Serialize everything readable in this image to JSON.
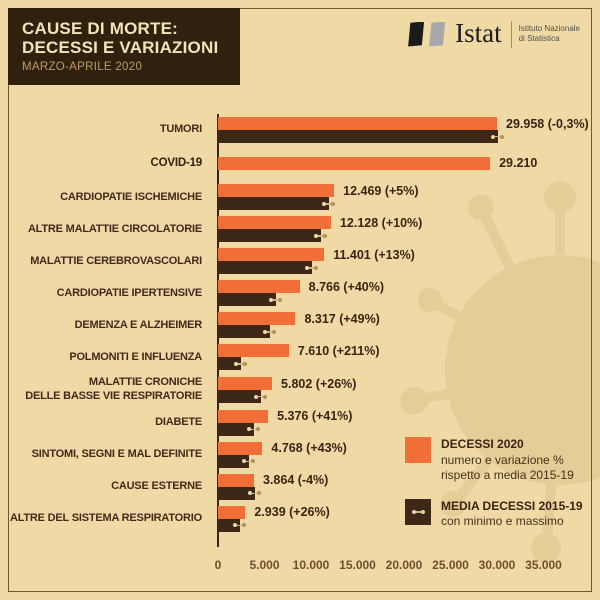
{
  "header": {
    "title_line1": "CAUSE DI MORTE:",
    "title_line2": "DECESSI E VARIAZIONI",
    "subtitle": "MARZO-APRILE 2020"
  },
  "logo": {
    "name": "Istat",
    "tagline_line1": "Istituto Nazionale",
    "tagline_line2": "di Statistica"
  },
  "legend": {
    "item1_title": "DECESSI 2020",
    "item1_line1": "numero e variazione %",
    "item1_line2": "rispetto a media 2015-19",
    "item2_title": "MEDIA DECESSI 2015-19",
    "item2_line1": "con minimo e massimo"
  },
  "colors": {
    "background": "#efdaa6",
    "bar_2020": "#f26e37",
    "bar_media": "#3d2817",
    "header_bg": "#31200e",
    "header_text": "#f3e4b8",
    "text_dark": "#3a2312",
    "tick_text": "#6f4e2c",
    "watermark": "#e4cd97"
  },
  "chart_data": {
    "type": "bar",
    "orientation": "horizontal",
    "title": "CAUSE DI MORTE: DECESSI E VARIAZIONI",
    "subtitle": "MARZO-APRILE 2020",
    "xlim": [
      0,
      35000
    ],
    "grid": false,
    "legend_position": "bottom-right",
    "x_ticks": [
      {
        "value": 0,
        "label": "0"
      },
      {
        "value": 5000,
        "label": "5.000"
      },
      {
        "value": 10000,
        "label": "10.000"
      },
      {
        "value": 15000,
        "label": "15.000"
      },
      {
        "value": 20000,
        "label": "20.000"
      },
      {
        "value": 25000,
        "label": "25.000"
      },
      {
        "value": 30000,
        "label": "30.000"
      },
      {
        "value": 35000,
        "label": "35.000"
      }
    ],
    "series_names": [
      "DECESSI 2020",
      "MEDIA DECESSI 2015-19"
    ],
    "rows": [
      {
        "label": "TUMORI",
        "deaths_2020": 29958,
        "value_label": "29.958 (-0,3%)",
        "variation_pct": -0.3,
        "media_2015_19_est": 30048
      },
      {
        "label": "COVID-19",
        "deaths_2020": 29210,
        "value_label": "29.210",
        "variation_pct": null,
        "media_2015_19_est": null,
        "bold": true
      },
      {
        "label": "CARDIOPATIE ISCHEMICHE",
        "deaths_2020": 12469,
        "value_label": "12.469 (+5%)",
        "variation_pct": 5,
        "media_2015_19_est": 11875
      },
      {
        "label": "ALTRE MALATTIE CIRCOLATORIE",
        "deaths_2020": 12128,
        "value_label": "12.128 (+10%)",
        "variation_pct": 10,
        "media_2015_19_est": 11025
      },
      {
        "label": "MALATTIE CEREBROVASCOLARI",
        "deaths_2020": 11401,
        "value_label": "11.401 (+13%)",
        "variation_pct": 13,
        "media_2015_19_est": 10090
      },
      {
        "label": "CARDIOPATIE IPERTENSIVE",
        "deaths_2020": 8766,
        "value_label": "8.766 (+40%)",
        "variation_pct": 40,
        "media_2015_19_est": 6261
      },
      {
        "label": "DEMENZA E ALZHEIMER",
        "deaths_2020": 8317,
        "value_label": "8.317 (+49%)",
        "variation_pct": 49,
        "media_2015_19_est": 5582
      },
      {
        "label": "POLMONITI E INFLUENZA",
        "deaths_2020": 7610,
        "value_label": "7.610 (+211%)",
        "variation_pct": 211,
        "media_2015_19_est": 2447
      },
      {
        "label": "MALATTIE CRONICHE",
        "label2": "DELLE BASSE VIE RESPIRATORIE",
        "deaths_2020": 5802,
        "value_label": "5.802 (+26%)",
        "variation_pct": 26,
        "media_2015_19_est": 4605
      },
      {
        "label": "DIABETE",
        "deaths_2020": 5376,
        "value_label": "5.376 (+41%)",
        "variation_pct": 41,
        "media_2015_19_est": 3813
      },
      {
        "label": "SINTOMI, SEGNI E MAL DEFINITE",
        "deaths_2020": 4768,
        "value_label": "4.768 (+43%)",
        "variation_pct": 43,
        "media_2015_19_est": 3334
      },
      {
        "label": "CAUSE ESTERNE",
        "deaths_2020": 3864,
        "value_label": "3.864 (-4%)",
        "variation_pct": -4,
        "media_2015_19_est": 4025
      },
      {
        "label": "ALTRE DEL SISTEMA RESPIRATORIO",
        "deaths_2020": 2939,
        "value_label": "2.939 (+26%)",
        "variation_pct": 26,
        "media_2015_19_est": 2333
      }
    ]
  }
}
